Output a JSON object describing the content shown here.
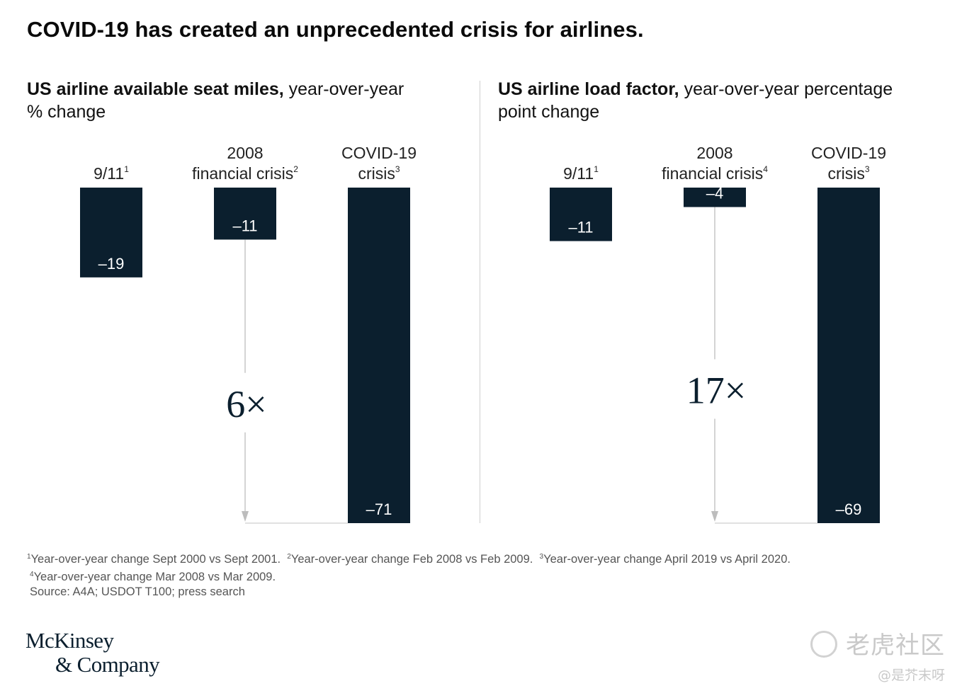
{
  "title": "COVID-19 has created an unprecedented crisis for airlines.",
  "panels": [
    {
      "title_bold": "US airline available seat miles,",
      "title_rest": " year-over-year",
      "title_line2": "% change"
    },
    {
      "title_bold": "US airline load factor,",
      "title_rest": " year-over-year percentage",
      "title_line2": "point change"
    }
  ],
  "chart_data": [
    {
      "type": "bar",
      "title": "US airline available seat miles, year-over-year % change",
      "categories": [
        {
          "lines": [
            "9/11"
          ],
          "sup": "1"
        },
        {
          "lines": [
            "2008",
            "financial crisis"
          ],
          "sup": "2"
        },
        {
          "lines": [
            "COVID-19",
            "crisis"
          ],
          "sup": "3"
        }
      ],
      "values": [
        -19,
        -11,
        -71
      ],
      "value_labels": [
        "–19",
        "–11",
        "–71"
      ],
      "ylim": [
        -71,
        0
      ],
      "annotation": {
        "text": "6×",
        "from_category": 1,
        "to_category": 2
      },
      "color": "#0b1f2e"
    },
    {
      "type": "bar",
      "title": "US airline load factor, year-over-year percentage point change",
      "categories": [
        {
          "lines": [
            "9/11"
          ],
          "sup": "1"
        },
        {
          "lines": [
            "2008",
            "financial crisis"
          ],
          "sup": "4"
        },
        {
          "lines": [
            "COVID-19",
            "crisis"
          ],
          "sup": "3"
        }
      ],
      "values": [
        -11,
        -4,
        -69
      ],
      "value_labels": [
        "–11",
        "–4",
        "–69"
      ],
      "ylim": [
        -69,
        0
      ],
      "annotation": {
        "text": "17×",
        "from_category": 1,
        "to_category": 2
      },
      "color": "#0b1f2e"
    }
  ],
  "footnotes": {
    "line1": [
      {
        "sup": "1",
        "text": "Year-over-year change Sept 2000 vs Sept 2001."
      },
      {
        "sup": "2",
        "text": "Year-over-year change Feb 2008 vs Feb 2009."
      },
      {
        "sup": "3",
        "text": "Year-over-year change April 2019 vs April 2020."
      }
    ],
    "line2": {
      "sup": "4",
      "text": "Year-over-year change Mar 2008 vs Mar 2009."
    },
    "source": "Source: A4A; USDOT T100; press search"
  },
  "logo": {
    "line1": "McKinsey",
    "line2": "& Company"
  },
  "watermark": {
    "line1": "老虎社区",
    "line2": "@是芥末呀"
  }
}
